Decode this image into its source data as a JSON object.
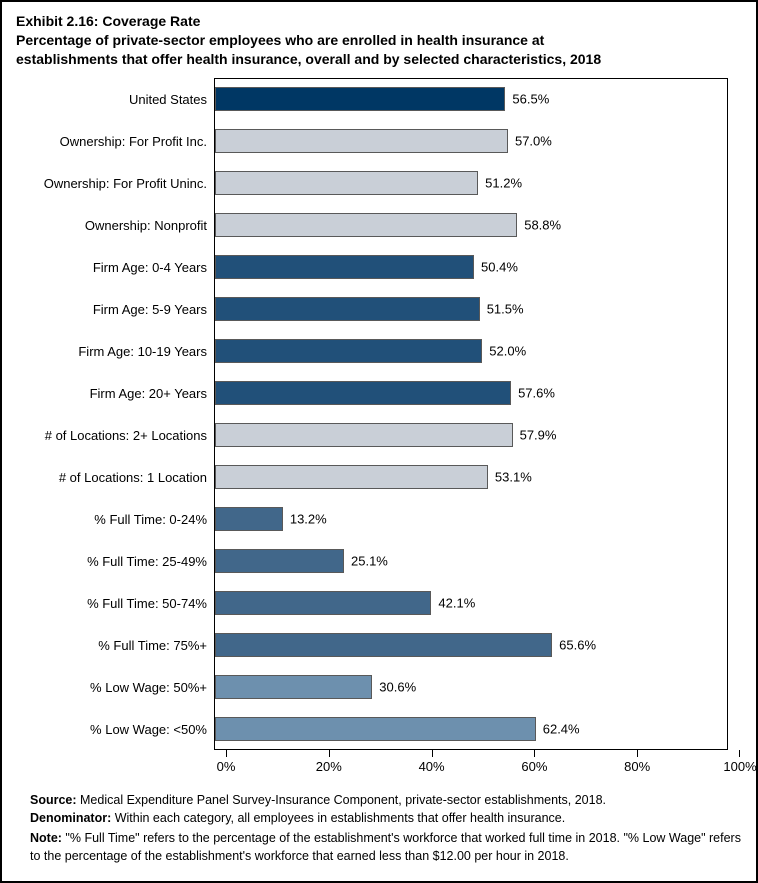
{
  "page": {
    "exhibit_title": "Exhibit 2.16: Coverage Rate",
    "subtitle_line1": "Percentage of private-sector employees who are enrolled in health insurance at",
    "subtitle_line2": "establishments that offer health insurance, overall and by selected characteristics, 2018"
  },
  "chart_data": {
    "type": "bar",
    "orientation": "horizontal",
    "title": "Exhibit 2.16: Coverage Rate",
    "categories": [
      "United States",
      "Ownership: For Profit Inc.",
      "Ownership: For Profit Uninc.",
      "Ownership: Nonprofit",
      "Firm Age: 0-4 Years",
      "Firm Age: 5-9 Years",
      "Firm Age: 10-19 Years",
      "Firm Age: 20+ Years",
      "# of Locations: 2+ Locations",
      "# of Locations: 1 Location",
      "% Full Time: 0-24%",
      "% Full Time: 25-49%",
      "% Full Time: 50-74%",
      "% Full Time: 75%+",
      "% Low Wage: 50%+",
      "% Low Wage: <50%"
    ],
    "values": [
      56.5,
      57.0,
      51.2,
      58.8,
      50.4,
      51.5,
      52.0,
      57.6,
      57.9,
      53.1,
      13.2,
      25.1,
      42.1,
      65.6,
      30.6,
      62.4
    ],
    "value_labels": [
      "56.5%",
      "57.0%",
      "51.2%",
      "58.8%",
      "50.4%",
      "51.5%",
      "52.0%",
      "57.6%",
      "57.9%",
      "53.1%",
      "13.2%",
      "25.1%",
      "42.1%",
      "65.6%",
      "30.6%",
      "62.4%"
    ],
    "bar_colors": [
      "#003764",
      "#C9CFD7",
      "#C9CFD7",
      "#C9CFD7",
      "#215079",
      "#215079",
      "#215079",
      "#215079",
      "#C9CFD7",
      "#C9CFD7",
      "#41678A",
      "#41678A",
      "#41678A",
      "#41678A",
      "#6D90AE",
      "#6D90AE"
    ],
    "xlim": [
      0,
      100
    ],
    "x_tick_values": [
      0,
      20,
      40,
      60,
      80,
      100
    ],
    "x_ticks": [
      "0%",
      "20%",
      "40%",
      "60%",
      "80%",
      "100%"
    ],
    "grid": false,
    "legend": "none"
  },
  "colors": {
    "navy_dark": "#003764",
    "navy": "#215079",
    "gray": "#C9CFD7",
    "steel": "#41678A",
    "light_steel": "#6D90AE",
    "bar_border": "#595959",
    "axis_line": "#000000"
  },
  "footnotes": [
    {
      "lead": "Source:",
      "text": " Medical Expenditure Panel Survey-Insurance Component, private-sector establishments, 2018."
    },
    {
      "lead": "Denominator:",
      "text": " Within each category, all employees in establishments that offer health insurance."
    },
    {
      "lead": "Note:",
      "text": " \"% Full Time\" refers to the percentage of the establishment's workforce that worked full time in 2018. \"% Low Wage\" refers to the percentage of the establishment's workforce that earned less than $12.00 per hour in 2018."
    }
  ]
}
